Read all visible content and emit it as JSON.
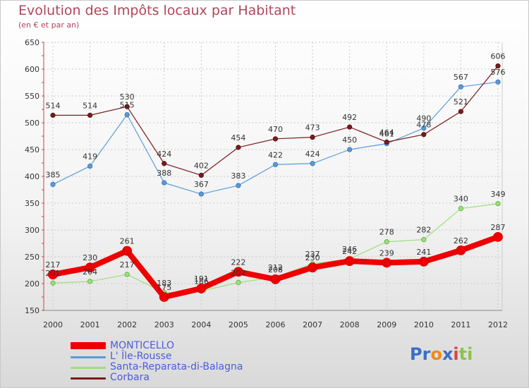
{
  "chart_data": {
    "type": "line",
    "title": "Evolution des Impôts locaux par Habitant",
    "subtitle": "(en € et par an)",
    "xlabel": "",
    "ylabel": "",
    "ylim": [
      150,
      650
    ],
    "yticks": [
      150,
      200,
      250,
      300,
      350,
      400,
      450,
      500,
      550,
      600,
      650
    ],
    "categories": [
      "2000",
      "2001",
      "2002",
      "2003",
      "2004",
      "2005",
      "2006",
      "2007",
      "2008",
      "2009",
      "2010",
      "2011",
      "2012"
    ],
    "series": [
      {
        "name": "MONTICELLO",
        "color": "#ee0000",
        "values": [
          217,
          230,
          261,
          175,
          191,
          222,
          208,
          230,
          242,
          239,
          241,
          262,
          287
        ],
        "labels": [
          "217",
          "230",
          "261",
          "175",
          "191",
          "222",
          "208",
          "230",
          "242",
          "239",
          "241",
          "262",
          "287"
        ]
      },
      {
        "name": "L' Île-Rousse",
        "color": "#5b9bd5",
        "values": [
          385,
          419,
          515,
          388,
          367,
          383,
          422,
          424,
          450,
          461,
          490,
          567,
          576
        ],
        "labels": [
          "385",
          "419",
          "515",
          "388",
          "367",
          "383",
          "422",
          "424",
          "450",
          "461",
          "490",
          "567",
          "576"
        ]
      },
      {
        "name": "Santa-Reparata-di-Balagna",
        "color": "#9be07a",
        "values": [
          201,
          204,
          217,
          183,
          186,
          202,
          212,
          237,
          246,
          278,
          282,
          340,
          349
        ],
        "labels": [
          "201",
          "204",
          "217",
          "183",
          "186",
          "202",
          "212",
          "237",
          "246",
          "278",
          "282",
          "340",
          "349"
        ]
      },
      {
        "name": "Corbara",
        "color": "#7a1b1b",
        "values": [
          514,
          514,
          530,
          424,
          402,
          454,
          470,
          473,
          492,
          464,
          478,
          521,
          606
        ],
        "labels": [
          "514",
          "514",
          "530",
          "424",
          "402",
          "454",
          "470",
          "473",
          "492",
          "464",
          "478",
          "521",
          "606"
        ]
      }
    ],
    "grid": true,
    "legend_position": "bottom-left"
  },
  "logo": {
    "text_parts": [
      "Pr",
      "o",
      "x",
      "i",
      "ti"
    ],
    "colors": [
      "#3a6fc4",
      "#f08a1a",
      "#3a6fc4",
      "#e04040",
      "#8bc34a"
    ]
  }
}
